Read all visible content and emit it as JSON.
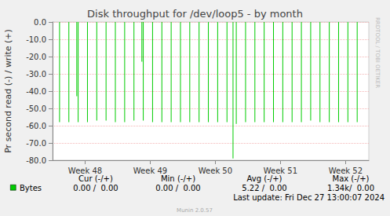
{
  "chart_data": {
    "type": "bar",
    "title": "Disk throughput for /dev/loop5 - by month",
    "y_label": "Pr second read (-) / write (+)",
    "x": [
      0.75,
      1.75,
      2.6,
      2.75,
      3.75,
      4.75,
      5.75,
      6.75,
      7.75,
      8.75,
      9.6,
      9.75,
      10.75,
      11.75,
      12.75,
      13.75,
      14.75,
      15.75,
      16.75,
      17.75,
      18.75,
      19.4,
      19.75,
      20.75,
      21.75,
      22.75,
      23.75,
      24.75,
      25.75,
      26.75,
      27.75,
      28.75,
      29.75,
      30.75,
      31.75,
      32.75
    ],
    "series": [
      {
        "name": "Bytes",
        "color": "#00cc00",
        "values": [
          -58,
          -58,
          -43,
          -58,
          -58,
          -57,
          -57,
          -58,
          -58,
          -57,
          -23,
          -57,
          -58,
          -58,
          -58,
          -58,
          -58,
          -58,
          -58,
          -58,
          -58,
          -79,
          -59,
          -58,
          -58,
          -58,
          -58,
          -58,
          -58,
          -58,
          -57,
          -58,
          -58,
          -58,
          -58,
          -58
        ]
      }
    ],
    "xlim": [
      0,
      34
    ],
    "xticks": [
      {
        "value": 3.5,
        "label": "Week 48"
      },
      {
        "value": 10.5,
        "label": "Week 49"
      },
      {
        "value": 17.5,
        "label": "Week 50"
      },
      {
        "value": 24.5,
        "label": "Week 51"
      },
      {
        "value": 31.5,
        "label": "Week 52"
      }
    ],
    "ylim": [
      -80,
      0
    ],
    "yticks": [
      {
        "value": -80,
        "label": "-80.0"
      },
      {
        "value": -70,
        "label": "-70.0"
      },
      {
        "value": -60,
        "label": "-60.0"
      },
      {
        "value": -50,
        "label": "-50.0"
      },
      {
        "value": -40,
        "label": "-40.0"
      },
      {
        "value": -30,
        "label": "-30.0"
      },
      {
        "value": -20,
        "label": "-20.0"
      },
      {
        "value": -10,
        "label": "-10.0"
      },
      {
        "value": 0,
        "label": "0.0"
      }
    ],
    "grid": true,
    "summary_headers": [
      "Cur (-/+)",
      "Min (-/+)",
      "Avg (-/+)",
      "Max (-/+)"
    ],
    "summary_values": [
      "0.00 /  0.00",
      "0.00 /  0.00",
      "5.22 /  0.00",
      "1.34k/  0.00"
    ],
    "last_update": "Last update: Fri Dec 27 13:00:07 2024",
    "footer": "Munin 2.0.57",
    "side_text": "RRDTOOL / TOBI OETIKER"
  }
}
